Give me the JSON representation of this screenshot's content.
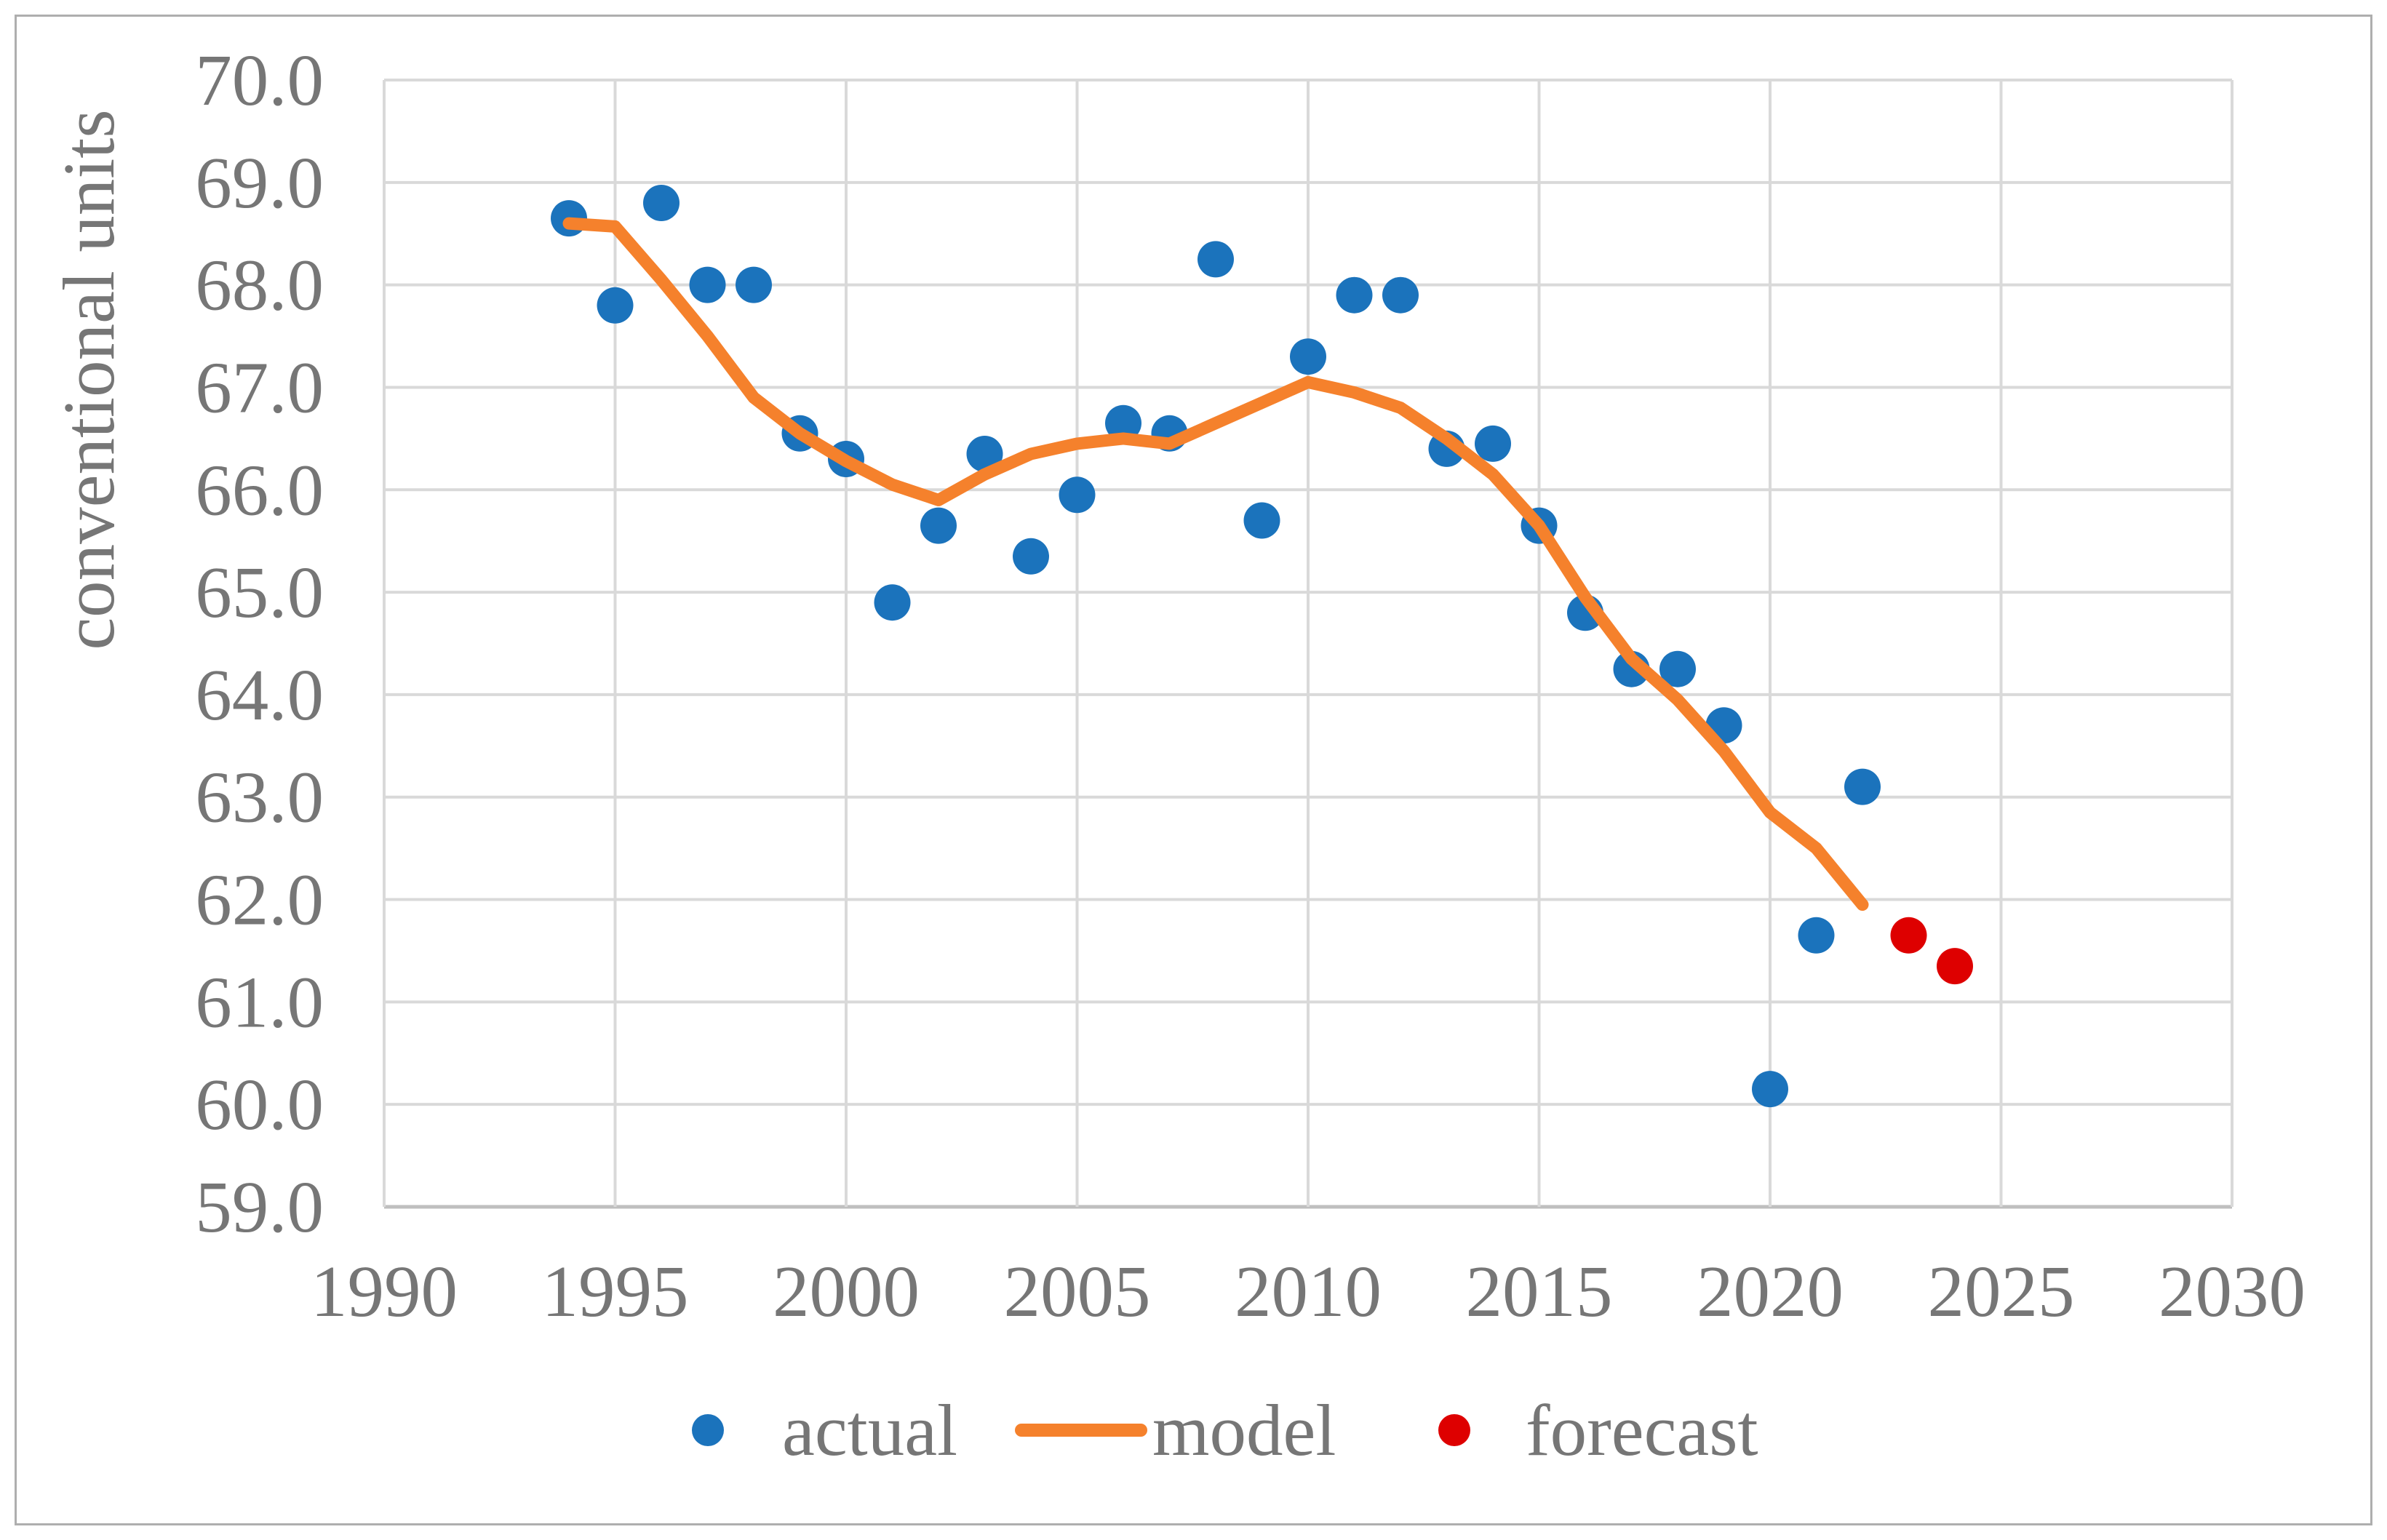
{
  "y_axis_title": "conventional units",
  "legend": {
    "actual": "actual",
    "model": "model",
    "forecast": "forecast"
  },
  "chart_data": {
    "type": "scatter",
    "title": "",
    "xlabel": "",
    "ylabel": "conventional units",
    "xlim": [
      1990,
      2030
    ],
    "ylim": [
      59.0,
      70.0
    ],
    "grid": true,
    "legend_position": "bottom",
    "x_ticks": [
      "1990",
      "1995",
      "2000",
      "2005",
      "2010",
      "2015",
      "2020",
      "2025",
      "2030"
    ],
    "y_ticks": [
      "70.0",
      "69.0",
      "68.0",
      "67.0",
      "66.0",
      "65.0",
      "64.0",
      "63.0",
      "62.0",
      "61.0",
      "60.0",
      "59.0"
    ],
    "colors": {
      "actual": "#1b73bc",
      "model": "#f5812c",
      "forecast": "#de0000",
      "gridline": "#d9d9d9",
      "axis_line": "#bfbfbf",
      "label_text": "#767676"
    },
    "series": [
      {
        "name": "actual",
        "type": "scatter",
        "color": "#1b73bc",
        "x": [
          1994,
          1995,
          1996,
          1997,
          1998,
          1999,
          2000,
          2001,
          2002,
          2003,
          2004,
          2005,
          2006,
          2007,
          2008,
          2009,
          2010,
          2011,
          2012,
          2013,
          2014,
          2015,
          2016,
          2017,
          2018,
          2019,
          2020,
          2021,
          2022
        ],
        "y": [
          68.65,
          67.8,
          68.8,
          68.0,
          68.0,
          66.55,
          66.3,
          64.9,
          65.65,
          66.35,
          65.35,
          65.95,
          66.65,
          66.55,
          68.25,
          65.7,
          67.3,
          67.9,
          67.9,
          66.4,
          66.45,
          65.65,
          64.8,
          64.25,
          64.25,
          63.7,
          60.15,
          61.65,
          63.1
        ]
      },
      {
        "name": "model",
        "type": "line",
        "color": "#f5812c",
        "x": [
          1994,
          1995,
          1996,
          1997,
          1998,
          1999,
          2000,
          2001,
          2002,
          2003,
          2004,
          2005,
          2006,
          2007,
          2008,
          2009,
          2010,
          2011,
          2012,
          2013,
          2014,
          2015,
          2016,
          2017,
          2018,
          2019,
          2020,
          2021,
          2022
        ],
        "y": [
          68.6,
          68.57,
          68.05,
          67.5,
          66.9,
          66.55,
          66.28,
          66.05,
          65.9,
          66.15,
          66.35,
          66.45,
          66.5,
          66.45,
          66.65,
          66.85,
          67.05,
          66.95,
          66.8,
          66.5,
          66.15,
          65.65,
          64.95,
          64.35,
          63.95,
          63.45,
          62.85,
          62.5,
          61.95
        ]
      },
      {
        "name": "forecast",
        "type": "scatter",
        "color": "#de0000",
        "x": [
          2023,
          2024
        ],
        "y": [
          61.65,
          61.35
        ]
      }
    ]
  }
}
